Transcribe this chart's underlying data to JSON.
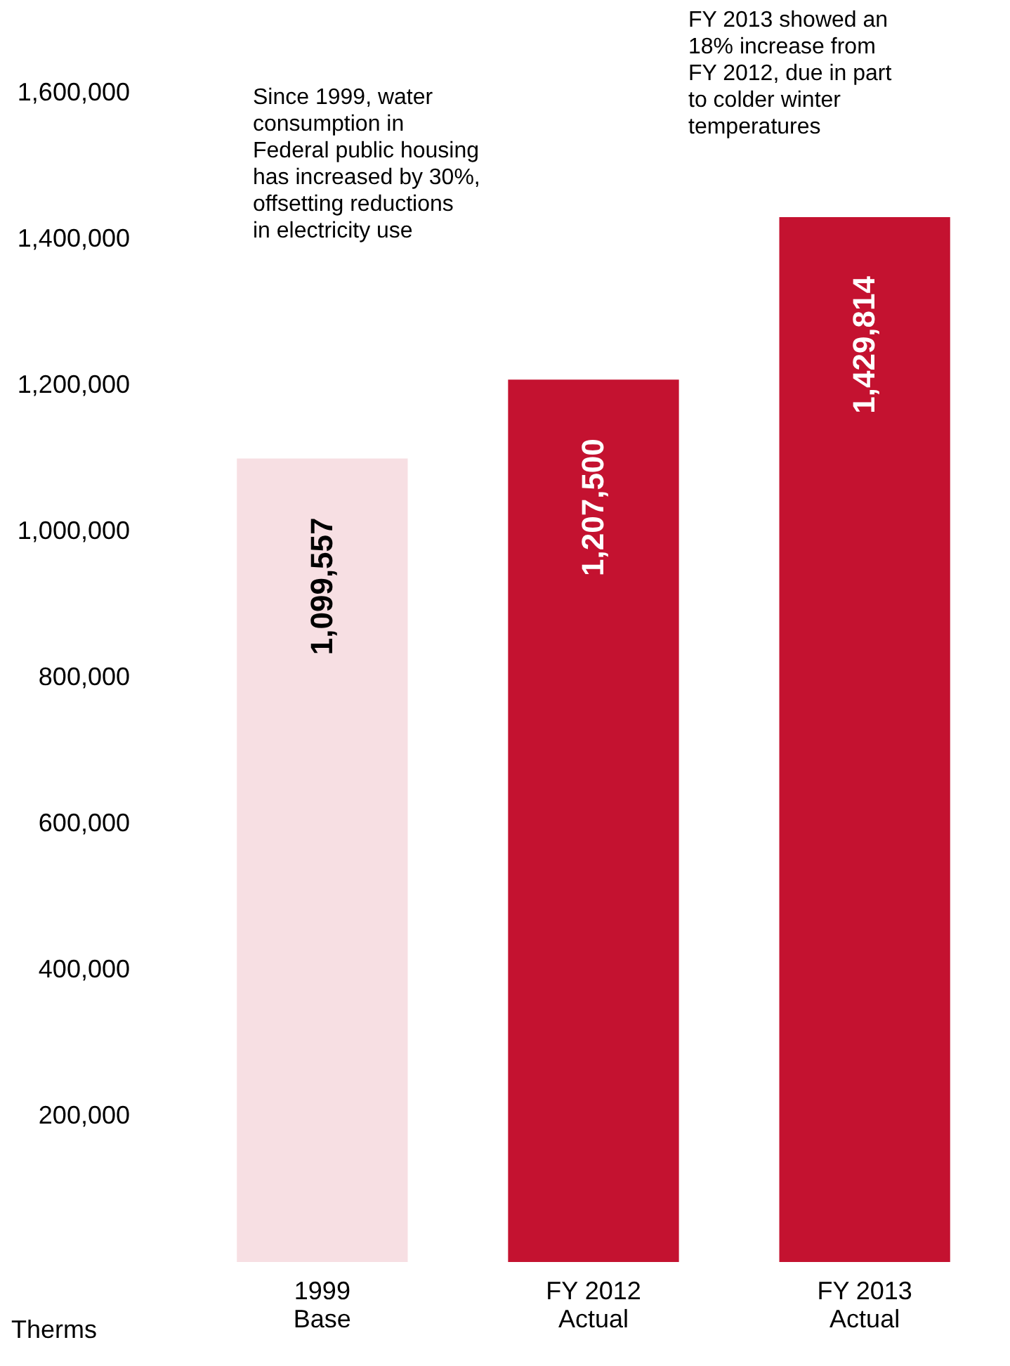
{
  "chart_data": {
    "type": "bar",
    "categories": [
      "1999\nBase",
      "FY 2012\nActual",
      "FY 2013\nActual"
    ],
    "values": [
      1099557,
      1207500,
      1429814
    ],
    "colors": [
      "#f7dfe3",
      "#c41230",
      "#c41230"
    ],
    "ylabel": "Therms",
    "ylim": [
      0,
      1600000
    ],
    "yticks": [
      {
        "value": 200000,
        "label": "200,000"
      },
      {
        "value": 400000,
        "label": "400,000"
      },
      {
        "value": 600000,
        "label": "600,000"
      },
      {
        "value": 800000,
        "label": "800,000"
      },
      {
        "value": 1000000,
        "label": "1,000,000"
      },
      {
        "value": 1200000,
        "label": "1,200,000"
      },
      {
        "value": 1400000,
        "label": "1,400,000"
      },
      {
        "value": 1600000,
        "label": "1,600,000"
      }
    ],
    "value_labels": [
      "1,099,557",
      "1,207,500",
      "1,429,814"
    ],
    "grid": false,
    "annotations": [
      "Since 1999, water\nconsumption in\nFederal public housing\nhas increased by 30%,\noffsetting reductions\nin electricity use",
      "FY 2013 showed an\n18% increase from\nFY 2012, due in part\nto colder winter\ntemperatures"
    ]
  }
}
